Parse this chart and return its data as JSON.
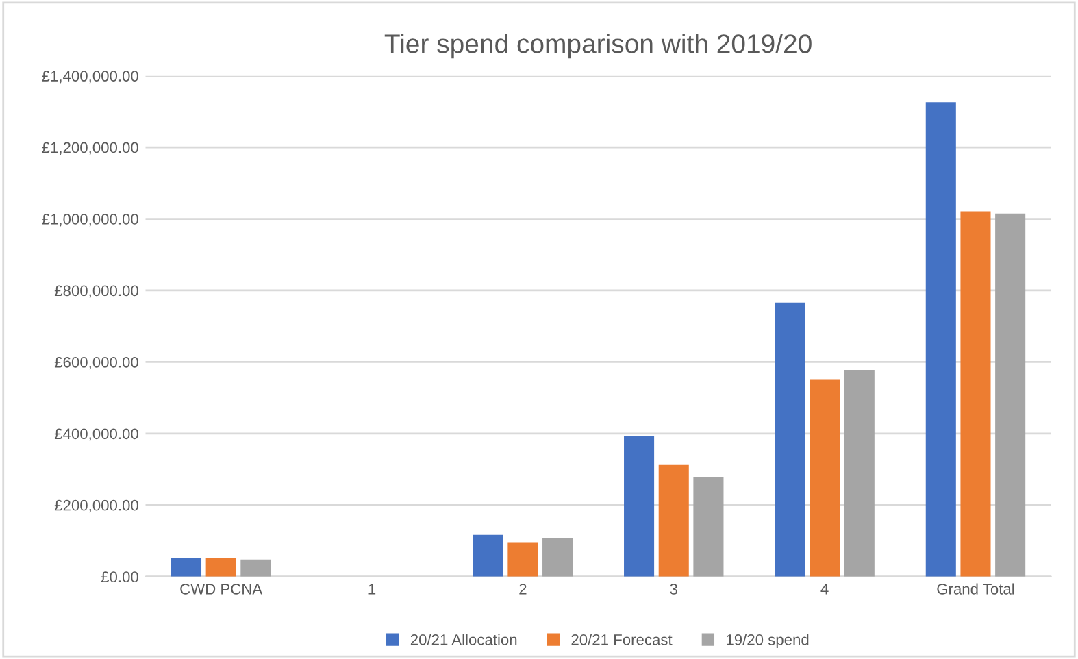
{
  "chart_data": {
    "type": "bar",
    "title": "Tier spend comparison with 2019/20",
    "categories": [
      "CWD PCNA",
      "1",
      "2",
      "3",
      "4",
      "Grand Total"
    ],
    "series": [
      {
        "name": "20/21 Allocation",
        "color": "#4472c4",
        "values": [
          53000,
          0,
          117000,
          392000,
          766000,
          1326000
        ]
      },
      {
        "name": "20/21 Forecast",
        "color": "#ed7d31",
        "values": [
          53000,
          0,
          96000,
          312000,
          552000,
          1021000
        ]
      },
      {
        "name": "19/20 spend",
        "color": "#a5a5a5",
        "values": [
          48000,
          0,
          107000,
          278000,
          578000,
          1015000
        ]
      }
    ],
    "ylim": [
      0,
      1400000
    ],
    "yticks": [
      {
        "value": 0,
        "label": "£0.00"
      },
      {
        "value": 200000,
        "label": "£200,000.00"
      },
      {
        "value": 400000,
        "label": "£400,000.00"
      },
      {
        "value": 600000,
        "label": "£600,000.00"
      },
      {
        "value": 800000,
        "label": "£800,000.00"
      },
      {
        "value": 1000000,
        "label": "£1,000,000.00"
      },
      {
        "value": 1200000,
        "label": "£1,200,000.00"
      },
      {
        "value": 1400000,
        "label": "£1,400,000.00"
      }
    ],
    "grid": "y",
    "legend": "bottom"
  }
}
